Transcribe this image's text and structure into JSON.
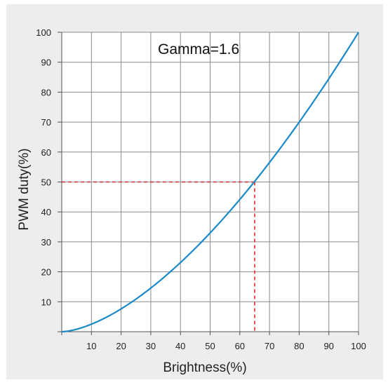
{
  "chart_data": {
    "type": "line",
    "title": "",
    "annotation": "Gamma=1.6",
    "xlabel": "Brightness(%)",
    "ylabel": "PWM duty(%)",
    "xlim": [
      0,
      100
    ],
    "ylim": [
      0,
      100
    ],
    "xticks": [
      10,
      20,
      30,
      40,
      50,
      60,
      70,
      80,
      90,
      100
    ],
    "yticks": [
      10,
      20,
      30,
      40,
      50,
      60,
      70,
      80,
      90,
      100
    ],
    "grid": true,
    "gamma": 1.6,
    "series": [
      {
        "x": [
          0,
          10,
          20,
          30,
          40,
          50,
          60,
          65,
          70,
          80,
          90,
          100
        ],
        "y": [
          0,
          2.5,
          7.6,
          14.6,
          23.1,
          33.0,
          44.2,
          50.1,
          56.5,
          69.9,
          84.5,
          100
        ],
        "color": "#1a8ac6"
      }
    ],
    "marker": {
      "x": 65,
      "y": 50,
      "color": "#e0262b"
    }
  }
}
